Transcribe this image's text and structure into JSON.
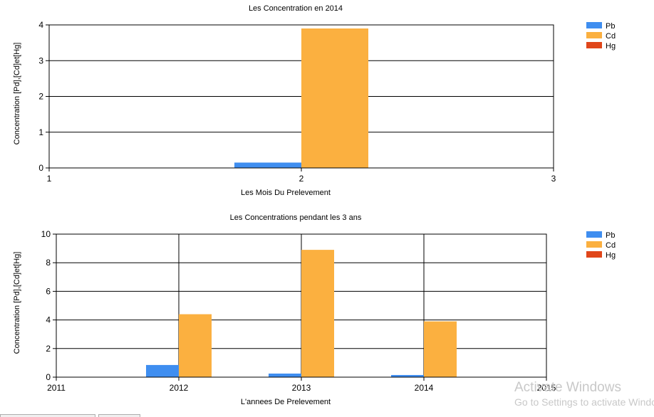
{
  "colors": {
    "Pb": "#3f8ef0",
    "Cd": "#fbb040",
    "Hg": "#e0461a"
  },
  "chart_data": [
    {
      "type": "bar",
      "title": "Les Concentration en 2014",
      "xlabel": "Les Mois Du Prelevement",
      "ylabel": "Concentration [Pd],[Cd]et[Hg]",
      "xlim": [
        1,
        3
      ],
      "ylim": [
        0,
        4
      ],
      "xticks": [
        "1",
        "2",
        "3"
      ],
      "yticks": [
        "0",
        "1",
        "2",
        "3",
        "4"
      ],
      "x": [
        2
      ],
      "series": [
        {
          "name": "Pb",
          "values": [
            0.15
          ]
        },
        {
          "name": "Cd",
          "values": [
            3.9
          ]
        },
        {
          "name": "Hg",
          "values": [
            0
          ]
        }
      ],
      "legend": "top-right",
      "grid": "horizontal"
    },
    {
      "type": "bar",
      "title": "Les Concentrations pendant les 3 ans",
      "xlabel": "L'annees De Prelevement",
      "ylabel": "Concentration [Pd],[Cd]et[Hg]",
      "xlim": [
        2011,
        2015
      ],
      "ylim": [
        0,
        10
      ],
      "xticks": [
        "2011",
        "2012",
        "2013",
        "2014",
        "2015"
      ],
      "yticks": [
        "0",
        "2",
        "4",
        "6",
        "8",
        "10"
      ],
      "x": [
        2012,
        2013,
        2014
      ],
      "series": [
        {
          "name": "Pb",
          "values": [
            0.85,
            0.25,
            0.15
          ]
        },
        {
          "name": "Cd",
          "values": [
            4.4,
            8.9,
            3.9
          ]
        },
        {
          "name": "Hg",
          "values": [
            0,
            0,
            0
          ]
        }
      ],
      "legend": "top-right",
      "grid": "both"
    }
  ],
  "watermark": {
    "line1": "Activate Windows",
    "line2": "Go to Settings to activate Windows."
  }
}
